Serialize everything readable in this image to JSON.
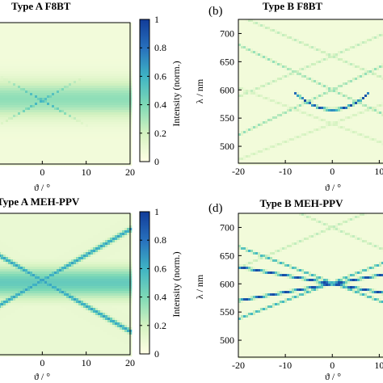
{
  "chart_data": [
    {
      "type": "heatmap",
      "panel": "",
      "title": "Type A F8BT",
      "xlabel": "ϑ / °",
      "ylabel": "",
      "xticks": [
        "0",
        "10",
        "20"
      ],
      "yticks": [],
      "xlim": [
        -10,
        20
      ],
      "ylim": [
        500,
        700
      ],
      "colorbar": {
        "label": "Intensity (norm.)",
        "ticks": [
          "0",
          "0.2",
          "0.4",
          "0.6",
          "0.8",
          "1"
        ],
        "range": [
          0,
          1
        ],
        "colors": [
          "#ffffe5",
          "#d4f2c0",
          "#7ed9b6",
          "#3fb4c4",
          "#2770bd",
          "#123c99"
        ]
      },
      "features": {
        "band": {
          "center": 592,
          "half_width": 25,
          "peak": 0.3
        },
        "crossing": {
          "x": 0,
          "y": 590,
          "slope": 3.5,
          "peak": 0.6
        }
      }
    },
    {
      "type": "heatmap",
      "panel": "(b)",
      "title": "Type B F8BT",
      "xlabel": "ϑ / °",
      "ylabel": "λ / nm",
      "xticks": [
        "-20",
        "-10",
        "0",
        "10"
      ],
      "yticks": [
        "700",
        "650",
        "600",
        "550",
        "500"
      ],
      "xlim": [
        -20,
        12
      ],
      "ylim": [
        470,
        725
      ],
      "features": {
        "arc": {
          "vertex_x": 0,
          "vertex_y": 565,
          "curvature": 0.48,
          "from_x": -8,
          "to_x": 8,
          "peak": 0.95
        },
        "lines": [
          {
            "y_at_0": 600,
            "slope": 4.0,
            "peak": 0.3
          },
          {
            "y_at_0": 600,
            "slope": -4.0,
            "peak": 0.3
          },
          {
            "y_at_0": 660,
            "slope": 3.6,
            "peak": 0.2
          },
          {
            "y_at_0": 660,
            "slope": -3.6,
            "peak": 0.2
          },
          {
            "y_at_0": 540,
            "slope": 3.2,
            "peak": 0.15
          },
          {
            "y_at_0": 540,
            "slope": -3.2,
            "peak": 0.15
          }
        ]
      }
    },
    {
      "type": "heatmap",
      "panel": "",
      "title": "Type A MEH-PPV",
      "xlabel": "ϑ / °",
      "ylabel": "",
      "xticks": [
        "0",
        "10",
        "20"
      ],
      "yticks": [],
      "xlim": [
        -10,
        20
      ],
      "ylim": [
        500,
        700
      ],
      "colorbar": {
        "label": "Intensity (norm.)",
        "ticks": [
          "0",
          "0.2",
          "0.4",
          "0.6",
          "0.8",
          "1"
        ],
        "range": [
          0,
          1
        ],
        "colors": [
          "#ffffe5",
          "#d4f2c0",
          "#7ed9b6",
          "#3fb4c4",
          "#2770bd",
          "#123c99"
        ]
      },
      "features": {
        "band": {
          "center": 602,
          "half_width": 22,
          "peak": 0.42
        },
        "vee": {
          "x": 0,
          "y": 605,
          "slope": 3.6,
          "peak": 0.55
        }
      }
    },
    {
      "type": "heatmap",
      "panel": "(d)",
      "title": "Type B MEH-PPV",
      "xlabel": "ϑ / °",
      "ylabel": "λ / nm",
      "xticks": [
        "-20",
        "-10",
        "0",
        "10"
      ],
      "yticks": [
        "700",
        "650",
        "600",
        "550",
        "500"
      ],
      "xlim": [
        -20,
        12
      ],
      "ylim": [
        470,
        725
      ],
      "features": {
        "lines": [
          {
            "y_at_0": 600,
            "slope": 1.5,
            "peak": 0.9
          },
          {
            "y_at_0": 600,
            "slope": -1.5,
            "peak": 0.9
          },
          {
            "y_at_0": 602,
            "slope": 3.2,
            "peak": 0.55
          },
          {
            "y_at_0": 602,
            "slope": -3.2,
            "peak": 0.55
          },
          {
            "y_at_0": 700,
            "slope": 3.6,
            "peak": 0.2
          },
          {
            "y_at_0": 700,
            "slope": -3.6,
            "peak": 0.2
          }
        ]
      }
    }
  ]
}
